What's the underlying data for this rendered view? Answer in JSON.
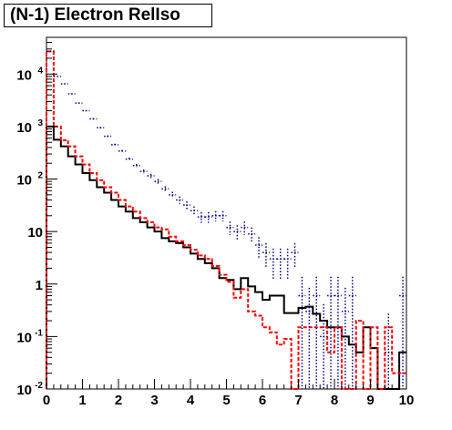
{
  "title": "(N-1) Electron RelIso",
  "chart_data": {
    "type": "histogram",
    "title": "(N-1) Electron RelIso",
    "xlabel": "",
    "ylabel": "",
    "xlim": [
      0,
      10
    ],
    "ylim": [
      0.01,
      50000
    ],
    "yscale": "log",
    "grid": false,
    "legend": false,
    "x_ticks": [
      "0",
      "1",
      "2",
      "3",
      "4",
      "5",
      "6",
      "7",
      "8",
      "9",
      "10"
    ],
    "y_ticks": [
      {
        "base": "10",
        "exp": "-2",
        "value": 0.01
      },
      {
        "base": "10",
        "exp": "-1",
        "value": 0.1
      },
      {
        "base": "1",
        "exp": "",
        "value": 1
      },
      {
        "base": "10",
        "exp": "",
        "value": 10
      },
      {
        "base": "10",
        "exp": "2",
        "value": 100
      },
      {
        "base": "10",
        "exp": "3",
        "value": 1000
      },
      {
        "base": "10",
        "exp": "4",
        "value": 10000
      }
    ],
    "bin_edges_start": 0,
    "bin_width": 0.2,
    "series": [
      {
        "style": "solid",
        "color": "#000000",
        "values": [
          1000,
          560,
          420,
          270,
          190,
          130,
          95,
          70,
          55,
          40,
          30,
          24,
          18,
          15,
          12,
          10,
          7.5,
          6.5,
          6,
          5,
          3.8,
          3,
          2.5,
          2,
          1.3,
          1.2,
          0.8,
          1.3,
          0.9,
          0.7,
          0.5,
          0.6,
          0.6,
          0.28,
          0.28,
          0.35,
          0.37,
          0.27,
          0.2,
          0.15,
          0.15,
          0.1,
          0.07,
          0.05,
          0.15,
          0.06,
          0.0,
          0.0,
          0.0,
          0.05
        ]
      },
      {
        "style": "dashed",
        "color": "#ff0000",
        "values": [
          27000,
          1000,
          550,
          420,
          270,
          190,
          130,
          95,
          70,
          55,
          40,
          30,
          24,
          18,
          15,
          12,
          11,
          8,
          6.5,
          5.5,
          4.5,
          3.5,
          3,
          2.2,
          1.5,
          1.1,
          0.55,
          0.8,
          0.3,
          0.25,
          0.15,
          0.12,
          0.07,
          0.09,
          0.0,
          0.15,
          0.15,
          0.15,
          0.15,
          0.05,
          0.15,
          0.0,
          0.0,
          0.2,
          0.0,
          0.15,
          0.0,
          0.15,
          0.02,
          0.02
        ]
      },
      {
        "style": "dotted-errorbars",
        "color": "#00008b",
        "values": [
          27000,
          9000,
          6500,
          4200,
          2800,
          2000,
          1400,
          950,
          650,
          450,
          340,
          240,
          180,
          140,
          115,
          90,
          65,
          50,
          40,
          32,
          25,
          19,
          19,
          20,
          20,
          12,
          10,
          12,
          9,
          5.5,
          4,
          3,
          3,
          3,
          4,
          0.6,
          0.3,
          0.6,
          0.1,
          0.6,
          0.6,
          0.3,
          0.6,
          0.0,
          0.0,
          0.0,
          0.0,
          0.05,
          0.0,
          0.6
        ]
      }
    ]
  }
}
